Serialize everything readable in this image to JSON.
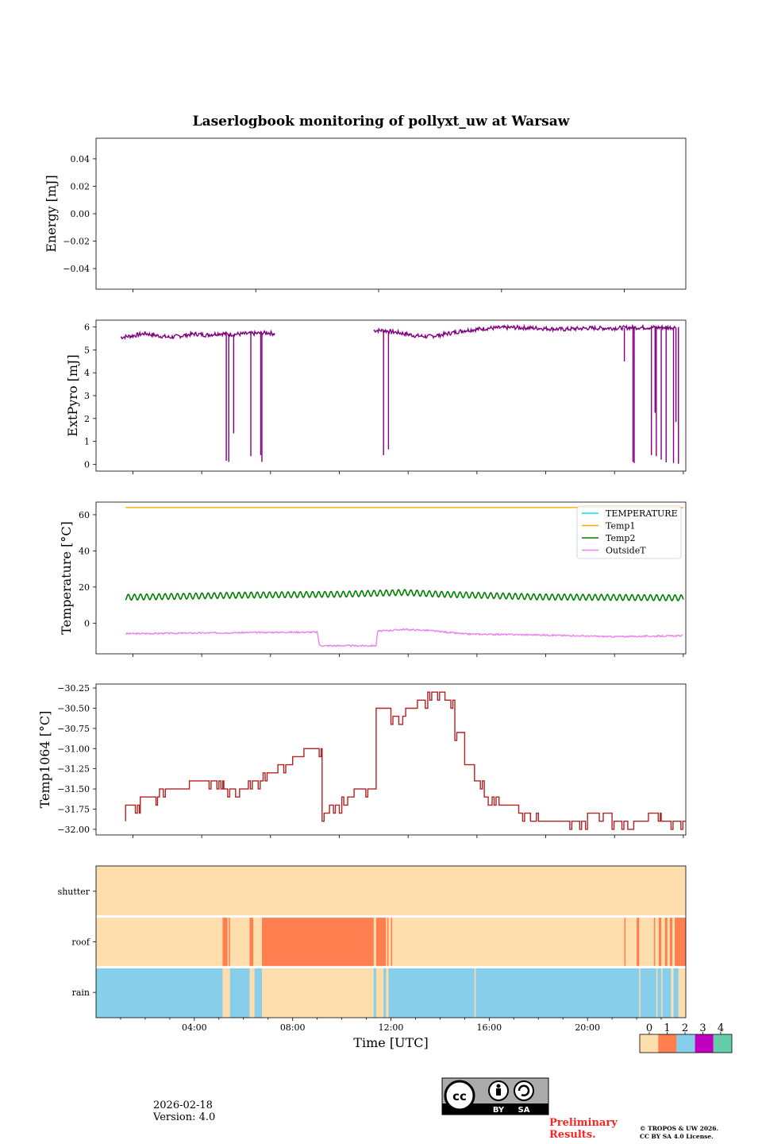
{
  "title": "Laserlogbook monitoring of pollyxt_uw at Warsaw",
  "footer": {
    "date": "2026-02-18",
    "version": "Version: 4.0",
    "preliminary": [
      "Preliminary",
      "Results."
    ],
    "copyright": [
      "© TROPOS & UW 2026.",
      "CC BY SA 4.0 License."
    ],
    "license_badge": [
      "cc",
      "BY",
      "SA"
    ]
  },
  "colors": {
    "purple": "#800080",
    "temp1": "#ffa500",
    "temp2": "#008000",
    "temperature": "#00e5ee",
    "outside": "#ee82ee",
    "temp1064": "#b22222",
    "status0": "#ffdead",
    "status1": "#ff7f50",
    "status2": "#87ceeb",
    "status3": "#c000c0",
    "status4": "#66cdaa"
  },
  "chart_data": [
    {
      "id": "energy",
      "type": "line",
      "ylabel": "Energy [mJ]",
      "ylim": [
        -0.055,
        0.055
      ],
      "yticks": [
        0.04,
        0.02,
        0.0,
        -0.02,
        -0.04
      ],
      "yticklabels": [
        "0.04",
        "0.02",
        "0.00",
        "−0.02",
        "−0.04"
      ],
      "series": []
    },
    {
      "id": "extpyro",
      "type": "line",
      "ylabel": "ExtPyro [mJ]",
      "xlim": [
        0,
        24
      ],
      "ylim": [
        -0.3,
        6.3
      ],
      "yticks": [
        0,
        1,
        2,
        3,
        4,
        5,
        6
      ],
      "yticklabels": [
        "0",
        "1",
        "2",
        "3",
        "4",
        "5",
        "6"
      ],
      "baseline": [
        [
          1.0,
          5.55
        ],
        [
          1.5,
          5.62
        ],
        [
          2.0,
          5.72
        ],
        [
          2.5,
          5.62
        ],
        [
          3.0,
          5.55
        ],
        [
          3.5,
          5.62
        ],
        [
          4.0,
          5.7
        ],
        [
          4.5,
          5.65
        ],
        [
          5.0,
          5.72
        ],
        [
          5.5,
          5.68
        ],
        [
          6.0,
          5.7
        ],
        [
          6.5,
          5.72
        ],
        [
          7.0,
          5.75
        ],
        [
          7.3,
          5.7
        ]
      ],
      "baseline2": [
        [
          11.3,
          5.85
        ],
        [
          11.7,
          5.85
        ],
        [
          12.0,
          5.8
        ],
        [
          12.5,
          5.72
        ],
        [
          13.0,
          5.62
        ],
        [
          13.5,
          5.58
        ],
        [
          14.0,
          5.65
        ],
        [
          14.5,
          5.75
        ],
        [
          15.0,
          5.85
        ],
        [
          16.0,
          5.95
        ],
        [
          17.0,
          5.98
        ],
        [
          18.0,
          5.95
        ],
        [
          19.0,
          5.9
        ],
        [
          20.0,
          5.95
        ],
        [
          21.0,
          5.95
        ],
        [
          22.0,
          5.98
        ],
        [
          23.0,
          5.98
        ]
      ],
      "drops": [
        [
          5.3,
          0.15
        ],
        [
          5.4,
          0.1
        ],
        [
          5.6,
          1.35
        ],
        [
          6.3,
          0.35
        ],
        [
          6.7,
          0.4
        ],
        [
          6.75,
          0.1
        ],
        [
          11.7,
          0.4
        ],
        [
          11.9,
          0.65
        ],
        [
          21.5,
          4.5
        ],
        [
          21.85,
          0.1
        ],
        [
          21.9,
          0.05
        ],
        [
          22.6,
          0.4
        ],
        [
          22.75,
          2.25
        ],
        [
          22.8,
          0.35
        ],
        [
          23.0,
          0.2
        ],
        [
          23.2,
          0.08
        ],
        [
          23.5,
          0.05
        ],
        [
          23.6,
          1.85
        ],
        [
          23.7,
          0.02
        ],
        [
          23.72,
          6.0
        ]
      ],
      "series": [
        {
          "name": "ExtPyro",
          "color": "#800080"
        }
      ]
    },
    {
      "id": "temperature",
      "type": "line",
      "ylabel": "Temperature [°C]",
      "xlim": [
        0,
        24
      ],
      "ylim": [
        -17,
        67
      ],
      "yticks": [
        60,
        40,
        20,
        0
      ],
      "yticklabels": [
        "60",
        "40",
        "20",
        "0"
      ],
      "legend": [
        "TEMPERATURE",
        "Temp1",
        "Temp2",
        "OutsideT"
      ],
      "legend_position": "upper right",
      "temp1": 64,
      "temp2_mean": [
        [
          0,
          14
        ],
        [
          6,
          15.5
        ],
        [
          10,
          16
        ],
        [
          12.5,
          17
        ],
        [
          14,
          16
        ],
        [
          18,
          14.5
        ],
        [
          24,
          14
        ]
      ],
      "temp2_amplitude": 1.6,
      "outsideT": [
        [
          0,
          -6
        ],
        [
          4,
          -5.5
        ],
        [
          8,
          -5
        ],
        [
          9.0,
          -5
        ],
        [
          9.1,
          -12.5
        ],
        [
          10.5,
          -12.5
        ],
        [
          11.4,
          -12.5
        ],
        [
          11.45,
          -4.5
        ],
        [
          12.5,
          -3.5
        ],
        [
          13.5,
          -4
        ],
        [
          15,
          -6
        ],
        [
          18,
          -6.5
        ],
        [
          21,
          -7.5
        ],
        [
          24,
          -7
        ]
      ],
      "series": [
        {
          "name": "TEMPERATURE"
        },
        {
          "name": "Temp1"
        },
        {
          "name": "Temp2"
        },
        {
          "name": "OutsideT"
        }
      ]
    },
    {
      "id": "temp1064",
      "type": "line",
      "ylabel": "Temp1064 [°C]",
      "xlim": [
        0,
        24
      ],
      "ylim": [
        -32.07,
        -30.2
      ],
      "yticks": [
        -30.25,
        -30.5,
        -30.75,
        -31.0,
        -31.25,
        -31.5,
        -31.75,
        -32.0
      ],
      "yticklabels": [
        "−30.25",
        "−30.50",
        "−30.75",
        "−31.00",
        "−31.25",
        "−31.50",
        "−31.75",
        "−32.00"
      ],
      "steps": [
        [
          0.0,
          -31.8
        ],
        [
          1.2,
          -31.7
        ],
        [
          1.8,
          -31.6
        ],
        [
          2.5,
          -31.5
        ],
        [
          3.8,
          -31.4
        ],
        [
          5.2,
          -31.5
        ],
        [
          6.2,
          -31.4
        ],
        [
          6.8,
          -31.3
        ],
        [
          7.4,
          -31.2
        ],
        [
          8.0,
          -31.1
        ],
        [
          8.3,
          -31.0
        ],
        [
          9.0,
          -31.0
        ],
        [
          9.2,
          -31.8
        ],
        [
          9.5,
          -31.7
        ],
        [
          10.0,
          -31.6
        ],
        [
          10.5,
          -31.5
        ],
        [
          11.4,
          -30.5
        ],
        [
          12.0,
          -30.6
        ],
        [
          12.6,
          -30.5
        ],
        [
          13.0,
          -30.4
        ],
        [
          13.5,
          -30.3
        ],
        [
          14.2,
          -30.4
        ],
        [
          14.6,
          -30.8
        ],
        [
          15.0,
          -31.2
        ],
        [
          15.4,
          -31.4
        ],
        [
          15.8,
          -31.6
        ],
        [
          16.4,
          -31.7
        ],
        [
          17.2,
          -31.8
        ],
        [
          18.0,
          -31.9
        ],
        [
          20.0,
          -31.8
        ],
        [
          21.0,
          -31.9
        ],
        [
          22.4,
          -31.8
        ],
        [
          23.0,
          -31.9
        ],
        [
          24.0,
          -31.9
        ]
      ],
      "series": [
        {
          "name": "Temp1064",
          "color": "#b22222"
        }
      ]
    },
    {
      "id": "status",
      "type": "heatmap",
      "xlabel": "Time [UTC]",
      "xlim": [
        0,
        24
      ],
      "xticks": [
        4,
        8,
        12,
        16,
        20
      ],
      "xticklabels": [
        "04:00",
        "08:00",
        "12:00",
        "16:00",
        "20:00"
      ],
      "rows": [
        "shutter",
        "roof",
        "rain"
      ],
      "colorbar_ticks": [
        "0",
        "1",
        "2",
        "3",
        "4"
      ],
      "shutter": [
        [
          0,
          24,
          0
        ]
      ],
      "roof": [
        [
          5.15,
          5.35,
          1
        ],
        [
          5.4,
          5.45,
          1
        ],
        [
          6.25,
          6.4,
          1
        ],
        [
          6.75,
          11.3,
          1
        ],
        [
          11.4,
          11.8,
          1
        ],
        [
          11.85,
          11.9,
          1
        ],
        [
          12.0,
          12.05,
          1
        ],
        [
          21.5,
          21.55,
          1
        ],
        [
          22.0,
          22.1,
          1
        ],
        [
          22.7,
          22.75,
          1
        ],
        [
          22.9,
          23.0,
          1
        ],
        [
          23.15,
          23.25,
          1
        ],
        [
          23.35,
          23.45,
          1
        ],
        [
          23.55,
          24.0,
          1
        ]
      ],
      "rain": [
        [
          0,
          5.15,
          2
        ],
        [
          5.45,
          6.25,
          2
        ],
        [
          6.45,
          6.75,
          2
        ],
        [
          11.3,
          11.4,
          2
        ],
        [
          11.7,
          11.8,
          2
        ],
        [
          11.9,
          15.4,
          2
        ],
        [
          15.45,
          22.1,
          2
        ],
        [
          22.15,
          22.8,
          2
        ],
        [
          22.85,
          23.0,
          2
        ],
        [
          23.05,
          23.4,
          2
        ],
        [
          23.5,
          23.7,
          2
        ]
      ]
    }
  ]
}
